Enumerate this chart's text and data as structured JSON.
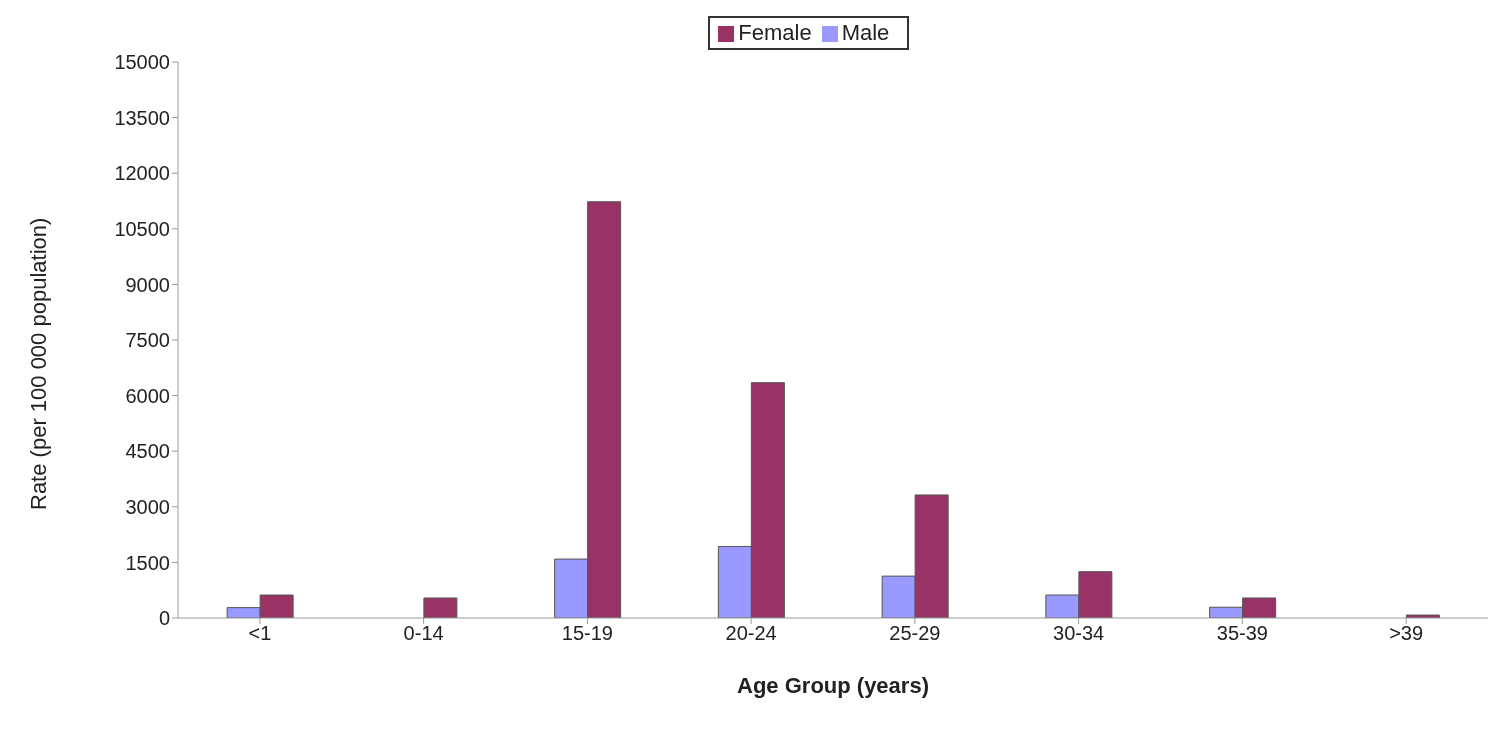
{
  "chart_data": {
    "type": "bar",
    "xlabel": "Age Group (years)",
    "ylabel": "Rate (per 100 000 population)",
    "categories": [
      "<1",
      "0-14",
      "15-19",
      "20-24",
      "25-29",
      "30-34",
      "35-39",
      ">39"
    ],
    "series": [
      {
        "name": "Male",
        "color": "#9999ff",
        "values": [
          280,
          null,
          1590,
          1930,
          1130,
          620,
          290,
          null
        ]
      },
      {
        "name": "Female",
        "color": "#993366",
        "values": [
          620,
          540,
          11230,
          6350,
          3320,
          1250,
          540,
          80
        ]
      }
    ],
    "ylim": [
      0,
      15000
    ],
    "yticks": [
      0,
      1500,
      3000,
      4500,
      6000,
      7500,
      9000,
      10500,
      12000,
      13500,
      15000
    ],
    "grid": false,
    "legend": "top"
  }
}
